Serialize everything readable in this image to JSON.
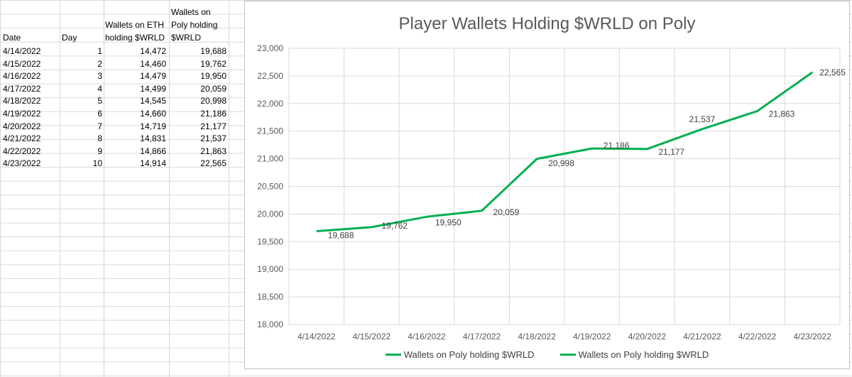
{
  "spreadsheet": {
    "headers": {
      "date": "Date",
      "day": "Day",
      "eth_line1": "Wallets on ETH",
      "eth_line2": "holding $WRLD",
      "poly_line0": "Wallets on",
      "poly_line1": "Poly holding",
      "poly_line2": "$WRLD"
    },
    "rows": [
      {
        "date": "4/14/2022",
        "day": "1",
        "eth": "14,472",
        "poly": "19,688"
      },
      {
        "date": "4/15/2022",
        "day": "2",
        "eth": "14,460",
        "poly": "19,762"
      },
      {
        "date": "4/16/2022",
        "day": "3",
        "eth": "14,479",
        "poly": "19,950"
      },
      {
        "date": "4/17/2022",
        "day": "4",
        "eth": "14,499",
        "poly": "20,059"
      },
      {
        "date": "4/18/2022",
        "day": "5",
        "eth": "14,545",
        "poly": "20,998"
      },
      {
        "date": "4/19/2022",
        "day": "6",
        "eth": "14,660",
        "poly": "21,186"
      },
      {
        "date": "4/20/2022",
        "day": "7",
        "eth": "14,719",
        "poly": "21,177"
      },
      {
        "date": "4/21/2022",
        "day": "8",
        "eth": "14,831",
        "poly": "21,537"
      },
      {
        "date": "4/22/2022",
        "day": "9",
        "eth": "14,866",
        "poly": "21,863"
      },
      {
        "date": "4/23/2022",
        "day": "10",
        "eth": "14,914",
        "poly": "22,565"
      }
    ]
  },
  "chart_data": {
    "type": "line",
    "title": "Player Wallets Holding $WRLD on Poly",
    "categories": [
      "4/14/2022",
      "4/15/2022",
      "4/16/2022",
      "4/17/2022",
      "4/18/2022",
      "4/19/2022",
      "4/20/2022",
      "4/21/2022",
      "4/22/2022",
      "4/23/2022"
    ],
    "series": [
      {
        "name": "Wallets on Poly holding $WRLD",
        "values": [
          19688,
          19762,
          19950,
          20059,
          20998,
          21186,
          21177,
          21537,
          21863,
          22565
        ]
      }
    ],
    "data_labels": [
      "19,688",
      "19,762",
      "19,950",
      "20,059",
      "20,998",
      "21,186",
      "21,177",
      "21,537",
      "21,863",
      "22,565"
    ],
    "y_ticks": [
      "18,000",
      "18,500",
      "19,000",
      "19,500",
      "20,000",
      "20,500",
      "21,000",
      "21,500",
      "22,000",
      "22,500",
      "23,000"
    ],
    "ylim": [
      18000,
      23000
    ],
    "grid": true,
    "line_color": "#00b050",
    "legend_position": "bottom",
    "legend_entries": [
      "Wallets on Poly holding $WRLD",
      "Wallets on Poly holding $WRLD"
    ]
  }
}
